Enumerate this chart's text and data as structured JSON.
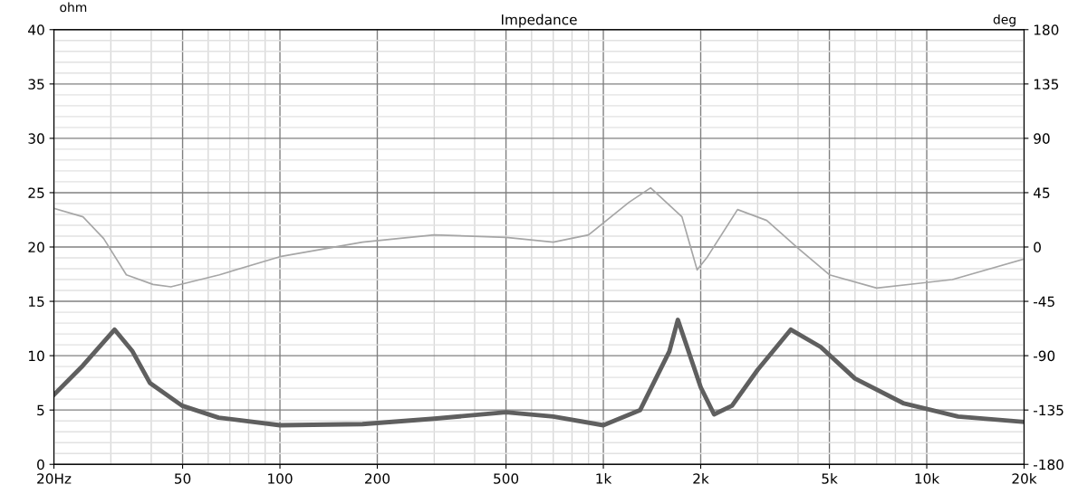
{
  "chart_data": {
    "type": "line",
    "title": "Impedance",
    "ylabel": "ohm",
    "y2label": "deg",
    "log": "x",
    "xlim": [
      20,
      20000
    ],
    "xticks": [
      {
        "value": 20,
        "label": "20Hz"
      },
      50,
      100,
      200,
      500,
      {
        "value": 1000,
        "label": "1k"
      },
      {
        "value": 2000,
        "label": "2k"
      },
      {
        "value": 5000,
        "label": "5k"
      },
      {
        "value": 10000,
        "label": "10k"
      },
      {
        "value": 20000,
        "label": "20k"
      }
    ],
    "ylim": [
      0,
      40
    ],
    "yticks": [
      0,
      5,
      10,
      15,
      20,
      25,
      30,
      35,
      40
    ],
    "y2lim": [
      -180,
      180
    ],
    "y2ticks": [
      -180,
      -135,
      -90,
      -45,
      0,
      45,
      90,
      135,
      180
    ],
    "grid": true,
    "line_style": "solid",
    "marker": "none",
    "series": [
      {
        "color": "#5f5f5f",
        "x": [
          20,
          24.6,
          30.8,
          35,
          39.6,
          49.8,
          64.6,
          100,
          180,
          300,
          500,
          700,
          1000,
          1300,
          1600,
          1700,
          2000,
          2200,
          2500,
          3000,
          3800,
          4700,
          6000,
          8500,
          12500,
          20000
        ],
        "values": [
          6.4,
          9.1,
          12.4,
          10.4,
          7.5,
          5.4,
          4.3,
          3.6,
          3.7,
          4.2,
          4.8,
          4.4,
          3.6,
          5.0,
          10.4,
          13.3,
          7.1,
          4.6,
          5.4,
          8.7,
          12.4,
          10.8,
          7.9,
          5.6,
          4.4,
          3.9
        ]
      },
      {
        "color": "#a6a6a6",
        "axis": "y2",
        "x": [
          20,
          24.6,
          28.5,
          33.5,
          40.5,
          46,
          65,
          100,
          180,
          300,
          500,
          700,
          900,
          1200,
          1400,
          1750,
          1950,
          2100,
          2600,
          3200,
          4000,
          5000,
          7000,
          12000,
          20000
        ],
        "values": [
          32,
          25,
          7,
          -23,
          -31,
          -33,
          -23,
          -8,
          4,
          10,
          8,
          4,
          10,
          37,
          49,
          25,
          -19,
          -8,
          31,
          22,
          -1,
          -23,
          -34,
          -27,
          -10
        ]
      }
    ]
  }
}
